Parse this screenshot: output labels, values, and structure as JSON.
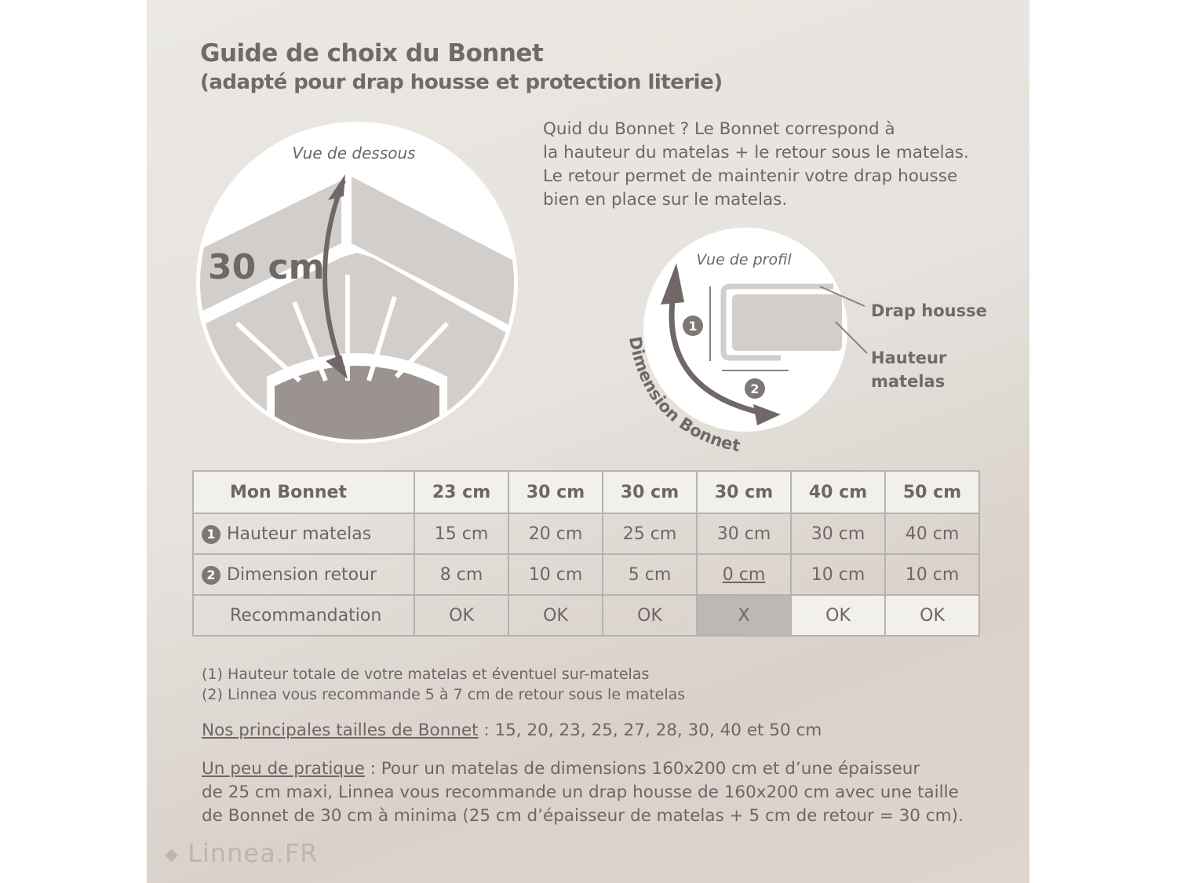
{
  "header": {
    "title": "Guide de choix du Bonnet",
    "subtitle": "(adapté pour drap housse et protection literie)"
  },
  "intro": {
    "lines": [
      "Quid du Bonnet ? Le Bonnet correspond à",
      "la hauteur du matelas + le retour sous le matelas.",
      "Le retour permet de maintenir votre drap housse",
      "bien en place sur le matelas."
    ]
  },
  "diagram_bottom": {
    "caption": "Vue de dessous",
    "measure": "30 cm"
  },
  "diagram_profile": {
    "caption": "Vue de profil",
    "label_drap": "Drap housse",
    "label_hauteur_1": "Hauteur",
    "label_hauteur_2": "matelas",
    "arc_label": "Dimension Bonnet",
    "marker_1": "1",
    "marker_2": "2"
  },
  "table": {
    "header": [
      "Mon Bonnet",
      "23 cm",
      "30 cm",
      "30 cm",
      "30 cm",
      "40 cm",
      "50 cm"
    ],
    "rows": [
      {
        "num": "1",
        "label": "Hauteur matelas",
        "values": [
          "15 cm",
          "20 cm",
          "25 cm",
          "30 cm",
          "30 cm",
          "40 cm"
        ]
      },
      {
        "num": "2",
        "label": "Dimension retour",
        "values": [
          "8 cm",
          "10 cm",
          "5 cm",
          "0 cm",
          "10 cm",
          "10 cm"
        ]
      },
      {
        "label": "Recommandation",
        "values": [
          "OK",
          "OK",
          "OK",
          "X",
          "OK",
          "OK"
        ]
      }
    ]
  },
  "notes": [
    "(1) Hauteur totale de votre matelas et éventuel sur-matelas",
    "(2) Linnea vous recommande 5 à 7 cm de retour sous le matelas"
  ],
  "sizes": {
    "label": "Nos principales tailles de Bonnet",
    "text": " : 15, 20, 23, 25, 27, 28, 30, 40 et 50 cm"
  },
  "pratique": {
    "label": "Un peu de pratique",
    "line1": " : Pour un matelas de dimensions 160x200 cm et d’une épaisseur",
    "line2": "de 25 cm maxi, Linnea vous recommande un drap housse de 160x200 cm avec une taille",
    "line3": "de Bonnet de 30 cm à minima (25 cm d’épaisseur de matelas + 5 cm de retour = 30 cm)."
  },
  "logo": {
    "text": "Linnea.FR"
  },
  "colors": {
    "text": "#6e6664",
    "arrow": "#6f6866",
    "sheet": "#d2cecb",
    "fail_cell": "#bcb8b4"
  }
}
